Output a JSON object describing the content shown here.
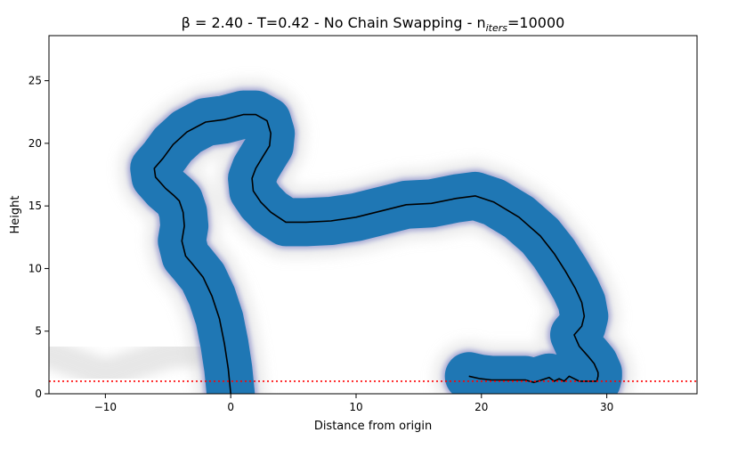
{
  "chart_data": {
    "type": "line",
    "title_prefix": "β = 2.40 - T=0.42 - No Chain Swapping - n",
    "title_subscript": "iters",
    "title_suffix": "=10000",
    "xlabel": "Distance from origin",
    "ylabel": "Height",
    "xlim": [
      -14.5,
      37.2
    ],
    "ylim": [
      0,
      28.6
    ],
    "xticks": [
      -10,
      0,
      10,
      20,
      30
    ],
    "yticks": [
      0,
      5,
      10,
      15,
      20,
      25
    ],
    "grid": false,
    "series": [
      {
        "role": "mean-chain",
        "color": "#000000",
        "x": [
          0.0,
          -0.2,
          -0.5,
          -0.9,
          -1.5,
          -2.2,
          -3.0,
          -3.6,
          -3.9,
          -3.7,
          -3.8,
          -4.1,
          -4.5,
          -5.2,
          -6.0,
          -6.1,
          -5.4,
          -4.6,
          -3.5,
          -2.0,
          -0.5,
          1.0,
          2.0,
          2.9,
          3.2,
          3.1,
          2.6,
          2.0,
          1.7,
          1.8,
          2.4,
          3.2,
          4.4,
          6.0,
          8.0,
          10.0,
          12.0,
          14.0,
          16.0,
          18.0,
          19.5,
          21.0,
          23.0,
          24.7,
          25.8,
          26.7,
          27.5,
          28.0,
          28.2,
          28.0,
          27.4,
          27.8,
          28.5,
          29.0,
          29.3,
          29.3,
          29.2,
          28.5,
          27.8,
          27.0,
          26.6,
          26.2,
          25.8,
          25.4,
          24.8,
          24.2,
          23.5,
          22.7,
          21.8,
          20.8,
          19.9,
          19.0
        ],
        "y": [
          0.0,
          2.0,
          4.0,
          6.0,
          7.8,
          9.3,
          10.3,
          11.0,
          12.2,
          13.4,
          14.5,
          15.4,
          15.8,
          16.4,
          17.3,
          18.0,
          18.8,
          19.9,
          20.9,
          21.7,
          21.9,
          22.3,
          22.3,
          21.8,
          20.8,
          19.8,
          19.0,
          18.0,
          17.2,
          16.2,
          15.3,
          14.5,
          13.7,
          13.7,
          13.8,
          14.1,
          14.6,
          15.1,
          15.2,
          15.6,
          15.8,
          15.3,
          14.1,
          12.6,
          11.2,
          9.8,
          8.4,
          7.3,
          6.2,
          5.4,
          4.7,
          3.8,
          3.0,
          2.4,
          1.7,
          1.4,
          1.0,
          1.0,
          1.0,
          1.4,
          1.0,
          1.2,
          1.0,
          1.3,
          1.1,
          0.9,
          1.1,
          1.1,
          1.1,
          1.1,
          1.2,
          1.4
        ]
      },
      {
        "role": "boundary",
        "color": "#ff0000",
        "style": "dotted",
        "y": 1
      }
    ],
    "colors": {
      "band": "#1f77b4",
      "band_edge": "#6a6fbf",
      "fog": "#cfcfcf",
      "mean_line": "#000000",
      "boundary": "#ff0000"
    }
  }
}
